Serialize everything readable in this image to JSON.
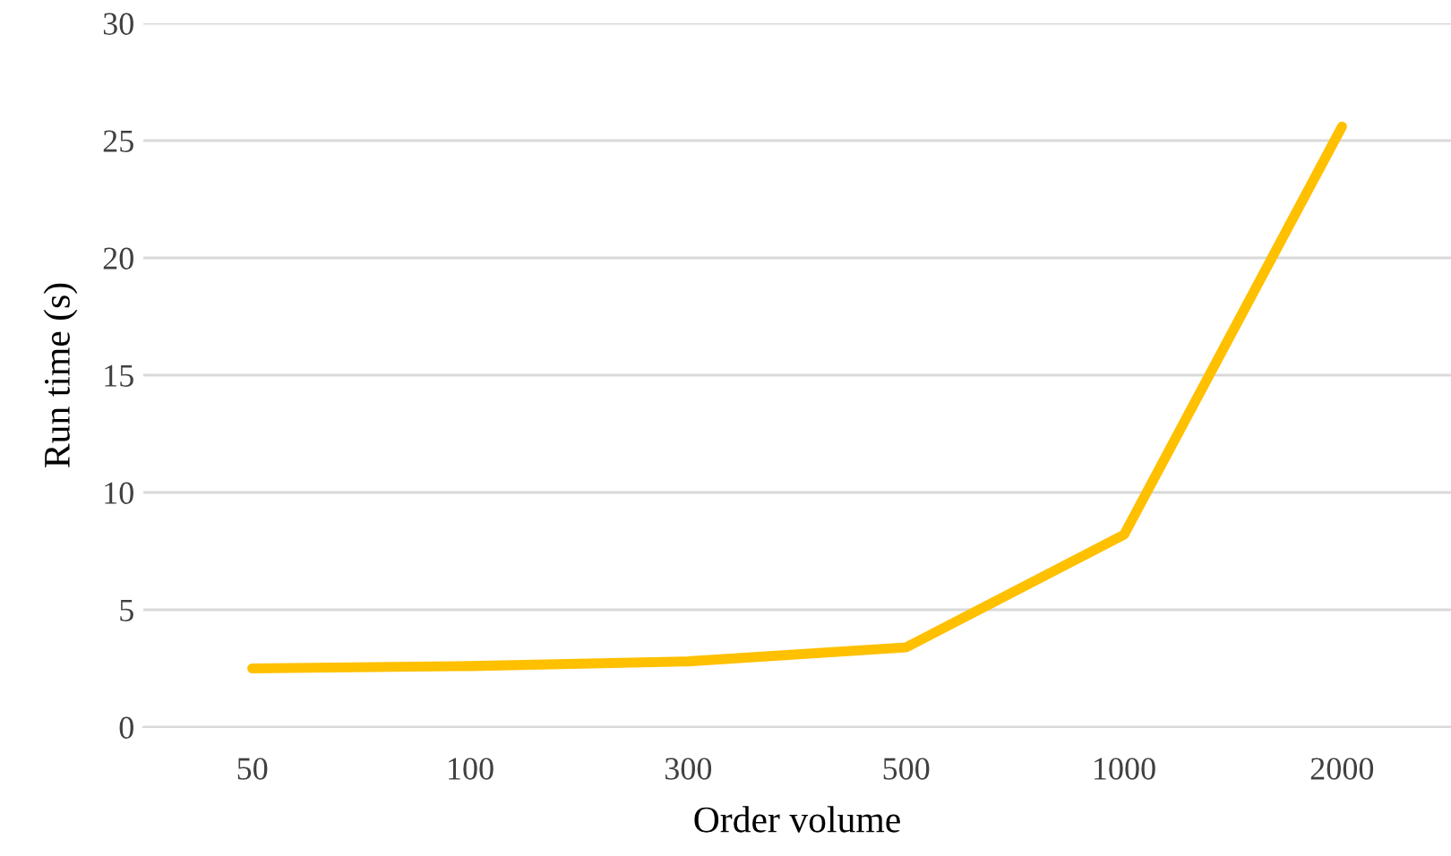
{
  "chart_data": {
    "type": "line",
    "xlabel": "Order volume",
    "ylabel": "Run time (s)",
    "categories": [
      "50",
      "100",
      "300",
      "500",
      "1000",
      "2000"
    ],
    "series": [
      {
        "color": "#ffc000",
        "values": [
          2.5,
          2.6,
          2.8,
          3.4,
          8.2,
          25.6
        ]
      }
    ],
    "ylim": [
      0,
      30
    ],
    "yticks": [
      0,
      5,
      10,
      15,
      20,
      25,
      30
    ],
    "grid": "y",
    "marker": "none",
    "line_style": "solid"
  }
}
